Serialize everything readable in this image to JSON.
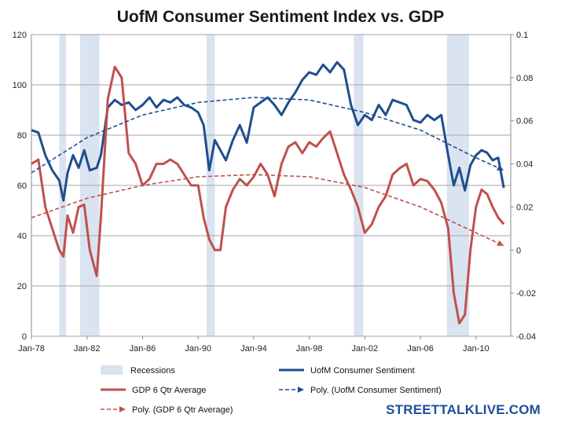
{
  "chart_data": {
    "type": "line",
    "title": "UofM Consumer Sentiment Index vs. GDP",
    "x_ticks": [
      "Jan-78",
      "Jan-82",
      "Jan-86",
      "Jan-90",
      "Jan-94",
      "Jan-98",
      "Jan-02",
      "Jan-06",
      "Jan-10"
    ],
    "x_range": [
      1978.0,
      2012.5
    ],
    "y_left": {
      "range": [
        0,
        120
      ],
      "ticks": [
        "0",
        "20",
        "40",
        "60",
        "80",
        "100",
        "120"
      ]
    },
    "y_right": {
      "range": [
        -0.04,
        0.1
      ],
      "ticks": [
        "-0.04",
        "-0.02",
        "0",
        "0.02",
        "0.04",
        "0.06",
        "0.08",
        "0.1"
      ]
    },
    "grid": "horizontal on left axis",
    "legend_position": "bottom",
    "recessions": [
      [
        1980.0,
        1980.5
      ],
      [
        1981.5,
        1982.9
      ],
      [
        1990.6,
        1991.2
      ],
      [
        2001.2,
        2001.9
      ],
      [
        2007.9,
        2009.5
      ]
    ],
    "series": [
      {
        "name": "UofM Consumer Sentiment",
        "axis": "left",
        "color": "#1f4e8c",
        "x": [
          1978.0,
          1978.5,
          1979.0,
          1979.5,
          1980.0,
          1980.3,
          1980.6,
          1981.0,
          1981.4,
          1981.8,
          1982.2,
          1982.7,
          1983.0,
          1983.5,
          1984.0,
          1984.5,
          1985.0,
          1985.5,
          1986.0,
          1986.5,
          1987.0,
          1987.5,
          1988.0,
          1988.5,
          1989.0,
          1989.5,
          1990.0,
          1990.4,
          1990.8,
          1991.2,
          1991.6,
          1992.0,
          1992.5,
          1993.0,
          1993.5,
          1994.0,
          1994.5,
          1995.0,
          1995.5,
          1996.0,
          1996.5,
          1997.0,
          1997.5,
          1998.0,
          1998.5,
          1999.0,
          1999.5,
          2000.0,
          2000.5,
          2001.0,
          2001.5,
          2002.0,
          2002.5,
          2003.0,
          2003.5,
          2004.0,
          2004.5,
          2005.0,
          2005.5,
          2006.0,
          2006.5,
          2007.0,
          2007.5,
          2008.0,
          2008.4,
          2008.8,
          2009.2,
          2009.6,
          2010.0,
          2010.4,
          2010.8,
          2011.2,
          2011.6,
          2012.0
        ],
        "y": [
          82,
          81,
          72,
          66,
          62,
          54,
          65,
          72,
          67,
          74,
          66,
          67,
          72,
          91,
          94,
          92,
          93,
          90,
          92,
          95,
          91,
          94,
          93,
          95,
          92,
          91,
          89,
          84,
          66,
          78,
          74,
          70,
          78,
          84,
          77,
          91,
          93,
          95,
          92,
          88,
          93,
          97,
          102,
          105,
          104,
          108,
          105,
          109,
          106,
          92,
          84,
          88,
          86,
          92,
          88,
          94,
          93,
          92,
          86,
          85,
          88,
          86,
          88,
          72,
          60,
          67,
          58,
          68,
          72,
          74,
          73,
          70,
          71,
          59
        ]
      },
      {
        "name": "GDP 6 Qtr Average",
        "axis": "right",
        "color": "#c0504d",
        "x": [
          1978.0,
          1978.5,
          1979.0,
          1979.5,
          1980.0,
          1980.3,
          1980.6,
          1981.0,
          1981.4,
          1981.8,
          1982.2,
          1982.7,
          1983.0,
          1983.5,
          1984.0,
          1984.5,
          1985.0,
          1985.5,
          1986.0,
          1986.5,
          1987.0,
          1987.5,
          1988.0,
          1988.5,
          1989.0,
          1989.5,
          1990.0,
          1990.4,
          1990.8,
          1991.2,
          1991.6,
          1992.0,
          1992.5,
          1993.0,
          1993.5,
          1994.0,
          1994.5,
          1995.0,
          1995.5,
          1996.0,
          1996.5,
          1997.0,
          1997.5,
          1998.0,
          1998.5,
          1999.0,
          1999.5,
          2000.0,
          2000.5,
          2001.0,
          2001.5,
          2002.0,
          2002.5,
          2003.0,
          2003.5,
          2004.0,
          2004.5,
          2005.0,
          2005.5,
          2006.0,
          2006.5,
          2007.0,
          2007.5,
          2008.0,
          2008.4,
          2008.8,
          2009.2,
          2009.6,
          2010.0,
          2010.4,
          2010.8,
          2011.2,
          2011.6,
          2012.0
        ],
        "y": [
          0.04,
          0.042,
          0.02,
          0.01,
          0.0,
          -0.003,
          0.016,
          0.008,
          0.02,
          0.021,
          0.0,
          -0.012,
          0.015,
          0.07,
          0.085,
          0.08,
          0.045,
          0.04,
          0.03,
          0.033,
          0.04,
          0.04,
          0.042,
          0.04,
          0.035,
          0.03,
          0.03,
          0.015,
          0.005,
          0.0,
          0.0,
          0.02,
          0.028,
          0.033,
          0.03,
          0.034,
          0.04,
          0.035,
          0.025,
          0.04,
          0.048,
          0.05,
          0.045,
          0.05,
          0.048,
          0.052,
          0.055,
          0.045,
          0.035,
          0.028,
          0.02,
          0.008,
          0.012,
          0.02,
          0.025,
          0.035,
          0.038,
          0.04,
          0.03,
          0.033,
          0.032,
          0.028,
          0.022,
          0.01,
          -0.02,
          -0.034,
          -0.03,
          0.0,
          0.02,
          0.028,
          0.026,
          0.02,
          0.015,
          0.012
        ]
      },
      {
        "name": "Poly. (UofM Consumer Sentiment)",
        "axis": "left",
        "style": "dashed",
        "color": "#1f4e8c",
        "x": [
          1978.0,
          1982.0,
          1986.0,
          1990.0,
          1994.0,
          1998.0,
          2002.0,
          2006.0,
          2010.0,
          2012.0
        ],
        "y": [
          65,
          79,
          88,
          93,
          95,
          94,
          89,
          82,
          71,
          66
        ]
      },
      {
        "name": "Poly. (GDP 6 Qtr Average)",
        "axis": "right",
        "style": "dashed",
        "color": "#c0504d",
        "x": [
          1978.0,
          1982.0,
          1986.0,
          1990.0,
          1994.0,
          1998.0,
          2002.0,
          2006.0,
          2010.0,
          2012.0
        ],
        "y": [
          0.015,
          0.024,
          0.03,
          0.034,
          0.035,
          0.034,
          0.029,
          0.02,
          0.008,
          0.002
        ]
      }
    ],
    "legend": [
      "Recessions",
      "UofM Consumer Sentiment",
      "GDP 6 Qtr Average",
      "Poly. (UofM Consumer Sentiment)",
      "Poly. (GDP 6 Qtr Average)"
    ]
  },
  "colors": {
    "recession_band": "#dae4f1",
    "blue": "#1f4e8c",
    "red": "#c0504d"
  },
  "watermark": "STREETTALKLIVE.COM"
}
